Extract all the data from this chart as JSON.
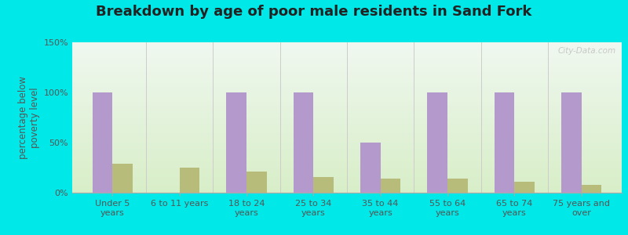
{
  "title": "Breakdown by age of poor male residents in Sand Fork",
  "categories": [
    "Under 5\nyears",
    "6 to 11 years",
    "18 to 24\nyears",
    "25 to 34\nyears",
    "35 to 44\nyears",
    "55 to 64\nyears",
    "65 to 74\nyears",
    "75 years and\nover"
  ],
  "sand_fork": [
    100,
    0,
    100,
    100,
    50,
    100,
    100,
    100
  ],
  "west_virginia": [
    29,
    25,
    21,
    16,
    14,
    14,
    11,
    8
  ],
  "sand_fork_color": "#b399cc",
  "west_virginia_color": "#b8bc7a",
  "ylabel": "percentage below\npoverty level",
  "ylim": [
    0,
    150
  ],
  "yticks": [
    0,
    50,
    100,
    150
  ],
  "ytick_labels": [
    "0%",
    "50%",
    "100%",
    "150%"
  ],
  "bg_top_color": "#f0f8f0",
  "bg_bottom_color": "#d8eec8",
  "outer_background": "#00e8e8",
  "bar_width": 0.3,
  "title_fontsize": 13,
  "axis_fontsize": 8.5,
  "tick_fontsize": 8,
  "legend_fontsize": 9
}
